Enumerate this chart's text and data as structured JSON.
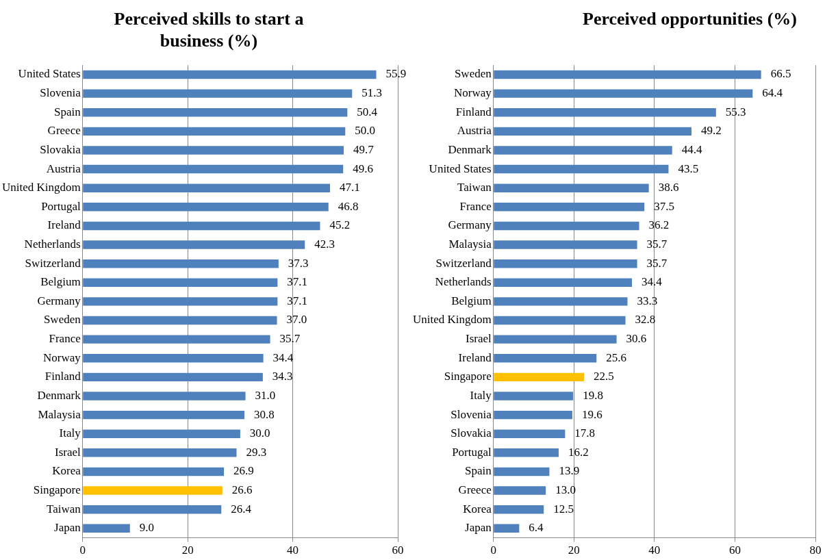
{
  "chart_data": [
    {
      "type": "bar",
      "orientation": "horizontal",
      "title": "Perceived skills to start a business (%)",
      "categories": [
        "United States",
        "Slovenia",
        "Spain",
        "Greece",
        "Slovakia",
        "Austria",
        "United Kingdom",
        "Portugal",
        "Ireland",
        "Netherlands",
        "Switzerland",
        "Belgium",
        "Germany",
        "Sweden",
        "France",
        "Norway",
        "Finland",
        "Denmark",
        "Malaysia",
        "Italy",
        "Israel",
        "Korea",
        "Singapore",
        "Taiwan",
        "Japan"
      ],
      "values": [
        55.9,
        51.3,
        50.4,
        50.0,
        49.7,
        49.6,
        47.1,
        46.8,
        45.2,
        42.3,
        37.3,
        37.1,
        37.1,
        37.0,
        35.7,
        34.4,
        34.3,
        31.0,
        30.8,
        30.0,
        29.3,
        26.9,
        26.6,
        26.4,
        9.0
      ],
      "value_labels": [
        "55.9",
        "51.3",
        "50.4",
        "50.0",
        "49.7",
        "49.6",
        "47.1",
        "46.8",
        "45.2",
        "42.3",
        "37.3",
        "37.1",
        "37.1",
        "37.0",
        "35.7",
        "34.4",
        "34.3",
        "31.0",
        "30.8",
        "30.0",
        "29.3",
        "26.9",
        "26.6",
        "26.4",
        "9.0"
      ],
      "colors": [
        "#4f81bd",
        "#4f81bd",
        "#4f81bd",
        "#4f81bd",
        "#4f81bd",
        "#4f81bd",
        "#4f81bd",
        "#4f81bd",
        "#4f81bd",
        "#4f81bd",
        "#4f81bd",
        "#4f81bd",
        "#4f81bd",
        "#4f81bd",
        "#4f81bd",
        "#4f81bd",
        "#4f81bd",
        "#4f81bd",
        "#4f81bd",
        "#4f81bd",
        "#4f81bd",
        "#4f81bd",
        "#ffc000",
        "#4f81bd",
        "#4f81bd"
      ],
      "xlim": [
        0,
        60
      ],
      "xticks": [
        0,
        20,
        40,
        60
      ],
      "grid": "x",
      "legend": false
    },
    {
      "type": "bar",
      "orientation": "horizontal",
      "title": "Perceived opportunities (%)",
      "categories": [
        "Sweden",
        "Norway",
        "Finland",
        "Austria",
        "Denmark",
        "United States",
        "Taiwan",
        "France",
        "Germany",
        "Malaysia",
        "Switzerland",
        "Netherlands",
        "Belgium",
        "United Kingdom",
        "Israel",
        "Ireland",
        "Singapore",
        "Italy",
        "Slovenia",
        "Slovakia",
        "Portugal",
        "Spain",
        "Greece",
        "Korea",
        "Japan"
      ],
      "values": [
        66.5,
        64.4,
        55.3,
        49.2,
        44.4,
        43.5,
        38.6,
        37.5,
        36.2,
        35.7,
        35.7,
        34.4,
        33.3,
        32.8,
        30.6,
        25.6,
        22.5,
        19.8,
        19.6,
        17.8,
        16.2,
        13.9,
        13.0,
        12.5,
        6.4
      ],
      "value_labels": [
        "66.5",
        "64.4",
        "55.3",
        "49.2",
        "44.4",
        "43.5",
        "38.6",
        "37.5",
        "36.2",
        "35.7",
        "35.7",
        "34.4",
        "33.3",
        "32.8",
        "30.6",
        "25.6",
        "22.5",
        "19.8",
        "19.6",
        "17.8",
        "16.2",
        "13.9",
        "13.0",
        "12.5",
        "6.4"
      ],
      "colors": [
        "#4f81bd",
        "#4f81bd",
        "#4f81bd",
        "#4f81bd",
        "#4f81bd",
        "#4f81bd",
        "#4f81bd",
        "#4f81bd",
        "#4f81bd",
        "#4f81bd",
        "#4f81bd",
        "#4f81bd",
        "#4f81bd",
        "#4f81bd",
        "#4f81bd",
        "#4f81bd",
        "#ffc000",
        "#4f81bd",
        "#4f81bd",
        "#4f81bd",
        "#4f81bd",
        "#4f81bd",
        "#4f81bd",
        "#4f81bd",
        "#4f81bd"
      ],
      "xlim": [
        0,
        80
      ],
      "xticks": [
        0,
        20,
        40,
        60,
        80
      ],
      "grid": "x",
      "legend": false
    }
  ]
}
